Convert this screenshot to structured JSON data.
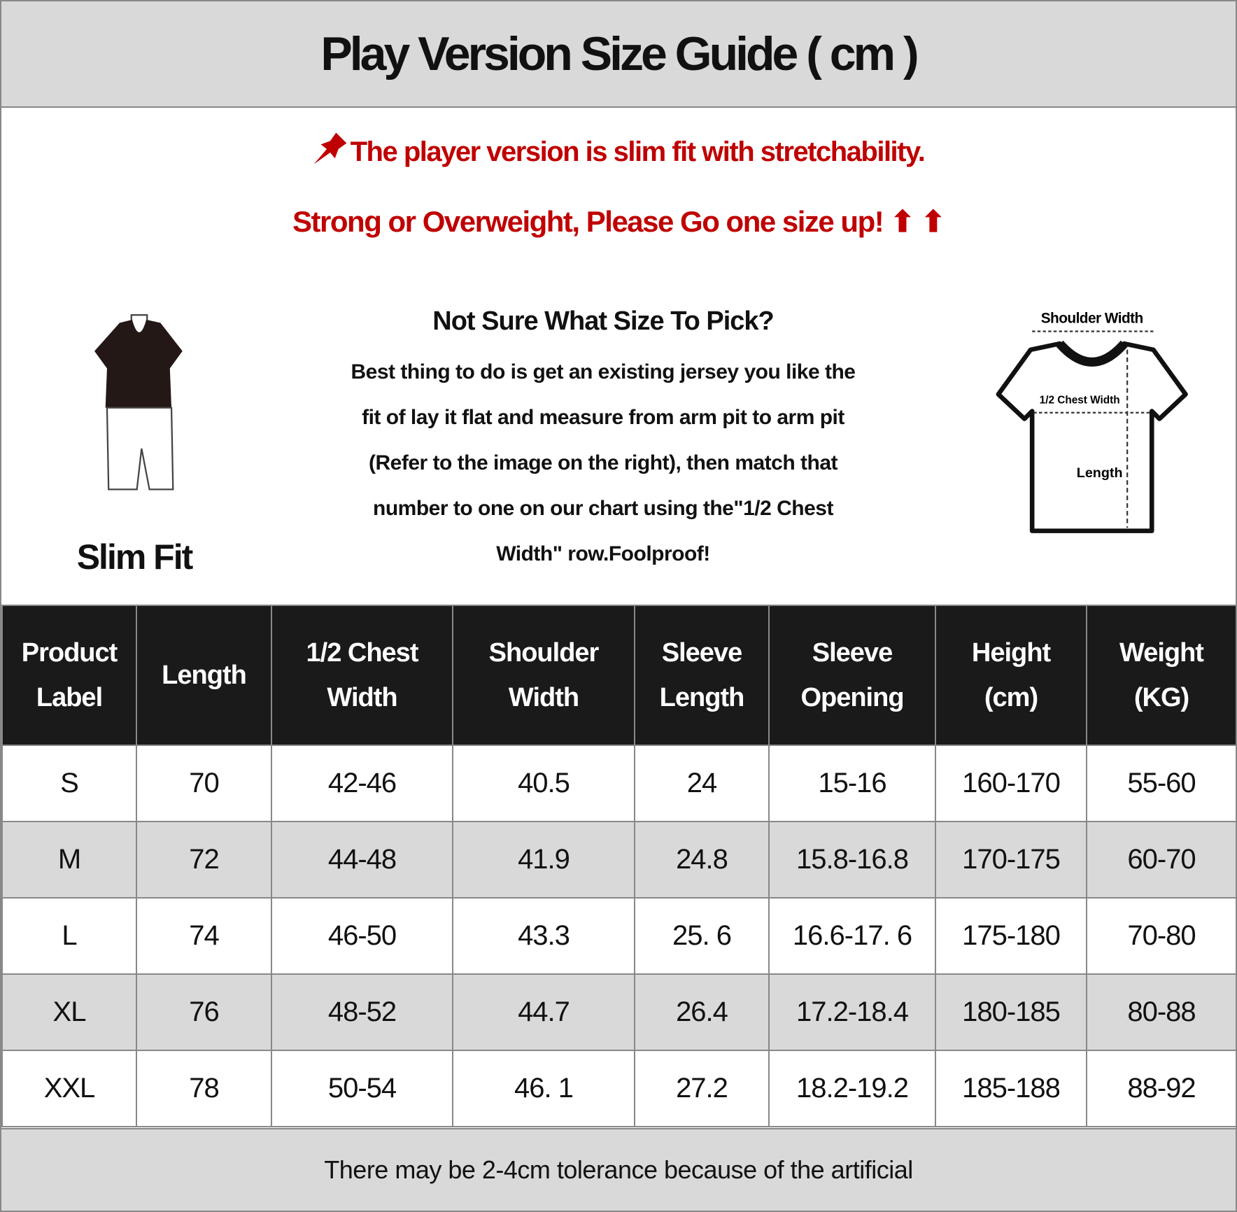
{
  "title": "Play Version Size Guide ( cm )",
  "notice": {
    "line1": "The player version is slim fit with stretchability.",
    "line2": "Strong or Overweight, Please Go one size up! ⬆ ⬆",
    "color": "#c00000",
    "icon": "pushpin-icon"
  },
  "guide": {
    "question": "Not Sure What Size To Pick?",
    "body": [
      "Best thing to do is get an existing jersey you like the",
      "fit of lay it flat and measure from arm pit to arm pit",
      "(Refer to the image on the right), then match that",
      "number to one on our chart using the\"1/2 Chest",
      "Width\" row.Foolproof!"
    ]
  },
  "fit_label": "Slim Fit",
  "diagram": {
    "shoulder": "Shoulder Width",
    "chest": "1/2 Chest Width",
    "length": "Length"
  },
  "table": {
    "headers": [
      [
        "Product",
        "Label"
      ],
      [
        "Length"
      ],
      [
        "1/2 Chest",
        "Width"
      ],
      [
        "Shoulder",
        "Width"
      ],
      [
        "Sleeve",
        "Length"
      ],
      [
        "Sleeve",
        "Opening"
      ],
      [
        "Height",
        "(cm)"
      ],
      [
        "Weight",
        "(KG)"
      ]
    ],
    "rows": [
      [
        "S",
        "70",
        "42-46",
        "40.5",
        "24",
        "15-16",
        "160-170",
        "55-60"
      ],
      [
        "M",
        "72",
        "44-48",
        "41.9",
        "24.8",
        "15.8-16.8",
        "170-175",
        "60-70"
      ],
      [
        "L",
        "74",
        "46-50",
        "43.3",
        "25. 6",
        "16.6-17. 6",
        "175-180",
        "70-80"
      ],
      [
        "XL",
        "76",
        "48-52",
        "44.7",
        "26.4",
        "17.2-18.4",
        "180-185",
        "80-88"
      ],
      [
        "XXL",
        "78",
        "50-54",
        "46. 1",
        "27.2",
        "18.2-19.2",
        "185-188",
        "88-92"
      ]
    ]
  },
  "footer": "There may be 2-4cm tolerance because of the artificial"
}
